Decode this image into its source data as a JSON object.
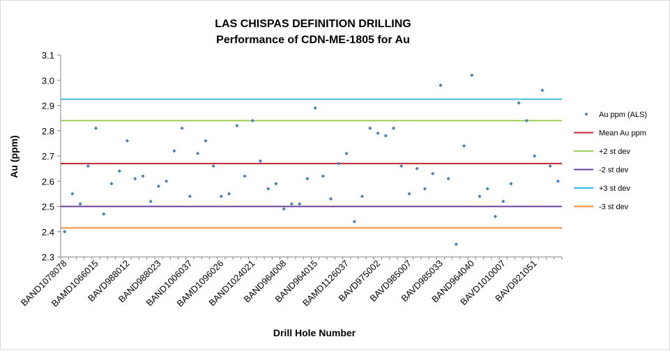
{
  "chart_data": {
    "type": "scatter",
    "title": "LAS CHISPAS DEFINITION DRILLING",
    "subtitle": "Performance of CDN-ME-1805 for Au",
    "xlabel": "Drill Hole Number",
    "ylabel": "Au (ppm)",
    "ylim": [
      2.3,
      3.1
    ],
    "ytick_step": 0.1,
    "yticks": [
      "2.3",
      "2.4",
      "2.5",
      "2.6",
      "2.7",
      "2.8",
      "2.9",
      "3.0",
      "3.1"
    ],
    "x_tick_labels": [
      "BAND1078078",
      "BAMD1066015",
      "BAVD988012",
      "BAND988023",
      "BAND1006037",
      "BAMD1096026",
      "BAND1024021",
      "BAND964008",
      "BAND964015",
      "BAMD1126037",
      "BAVD975002",
      "BAVD985007",
      "BAVD985033",
      "BAND964040",
      "BAVD1010007",
      "BAVD921051"
    ],
    "x_tick_every": 4,
    "grid": false,
    "legend_position": "right",
    "series": [
      {
        "name": "Au ppm (ALS)",
        "color": "#4a7ebb",
        "values": [
          2.4,
          2.55,
          2.51,
          2.66,
          2.81,
          2.47,
          2.59,
          2.64,
          2.76,
          2.61,
          2.62,
          2.52,
          2.58,
          2.6,
          2.72,
          2.81,
          2.54,
          2.71,
          2.76,
          2.66,
          2.54,
          2.55,
          2.82,
          2.62,
          2.84,
          2.68,
          2.57,
          2.59,
          2.49,
          2.51,
          2.51,
          2.61,
          2.89,
          2.62,
          2.53,
          2.67,
          2.71,
          2.44,
          2.54,
          2.81,
          2.79,
          2.78,
          2.81,
          2.66,
          2.55,
          2.65,
          2.57,
          2.63,
          2.98,
          2.61,
          2.35,
          2.74,
          3.02,
          2.54,
          2.57,
          2.46,
          2.52,
          2.59,
          2.91,
          2.84,
          2.7,
          2.96,
          2.66,
          2.6
        ]
      }
    ],
    "reference_lines": [
      {
        "name": "Mean Au ppm",
        "value": 2.67,
        "color": "#c0262d"
      },
      {
        "name": "+2 st dev",
        "value": 2.84,
        "color": "#9bcf55"
      },
      {
        "name": "-2 st dev",
        "value": 2.5,
        "color": "#6a3d9a"
      },
      {
        "name": "+3 st dev",
        "value": 2.925,
        "color": "#3fbcd9"
      },
      {
        "name": "-3 st dev",
        "value": 2.415,
        "color": "#f28c3a"
      }
    ]
  }
}
